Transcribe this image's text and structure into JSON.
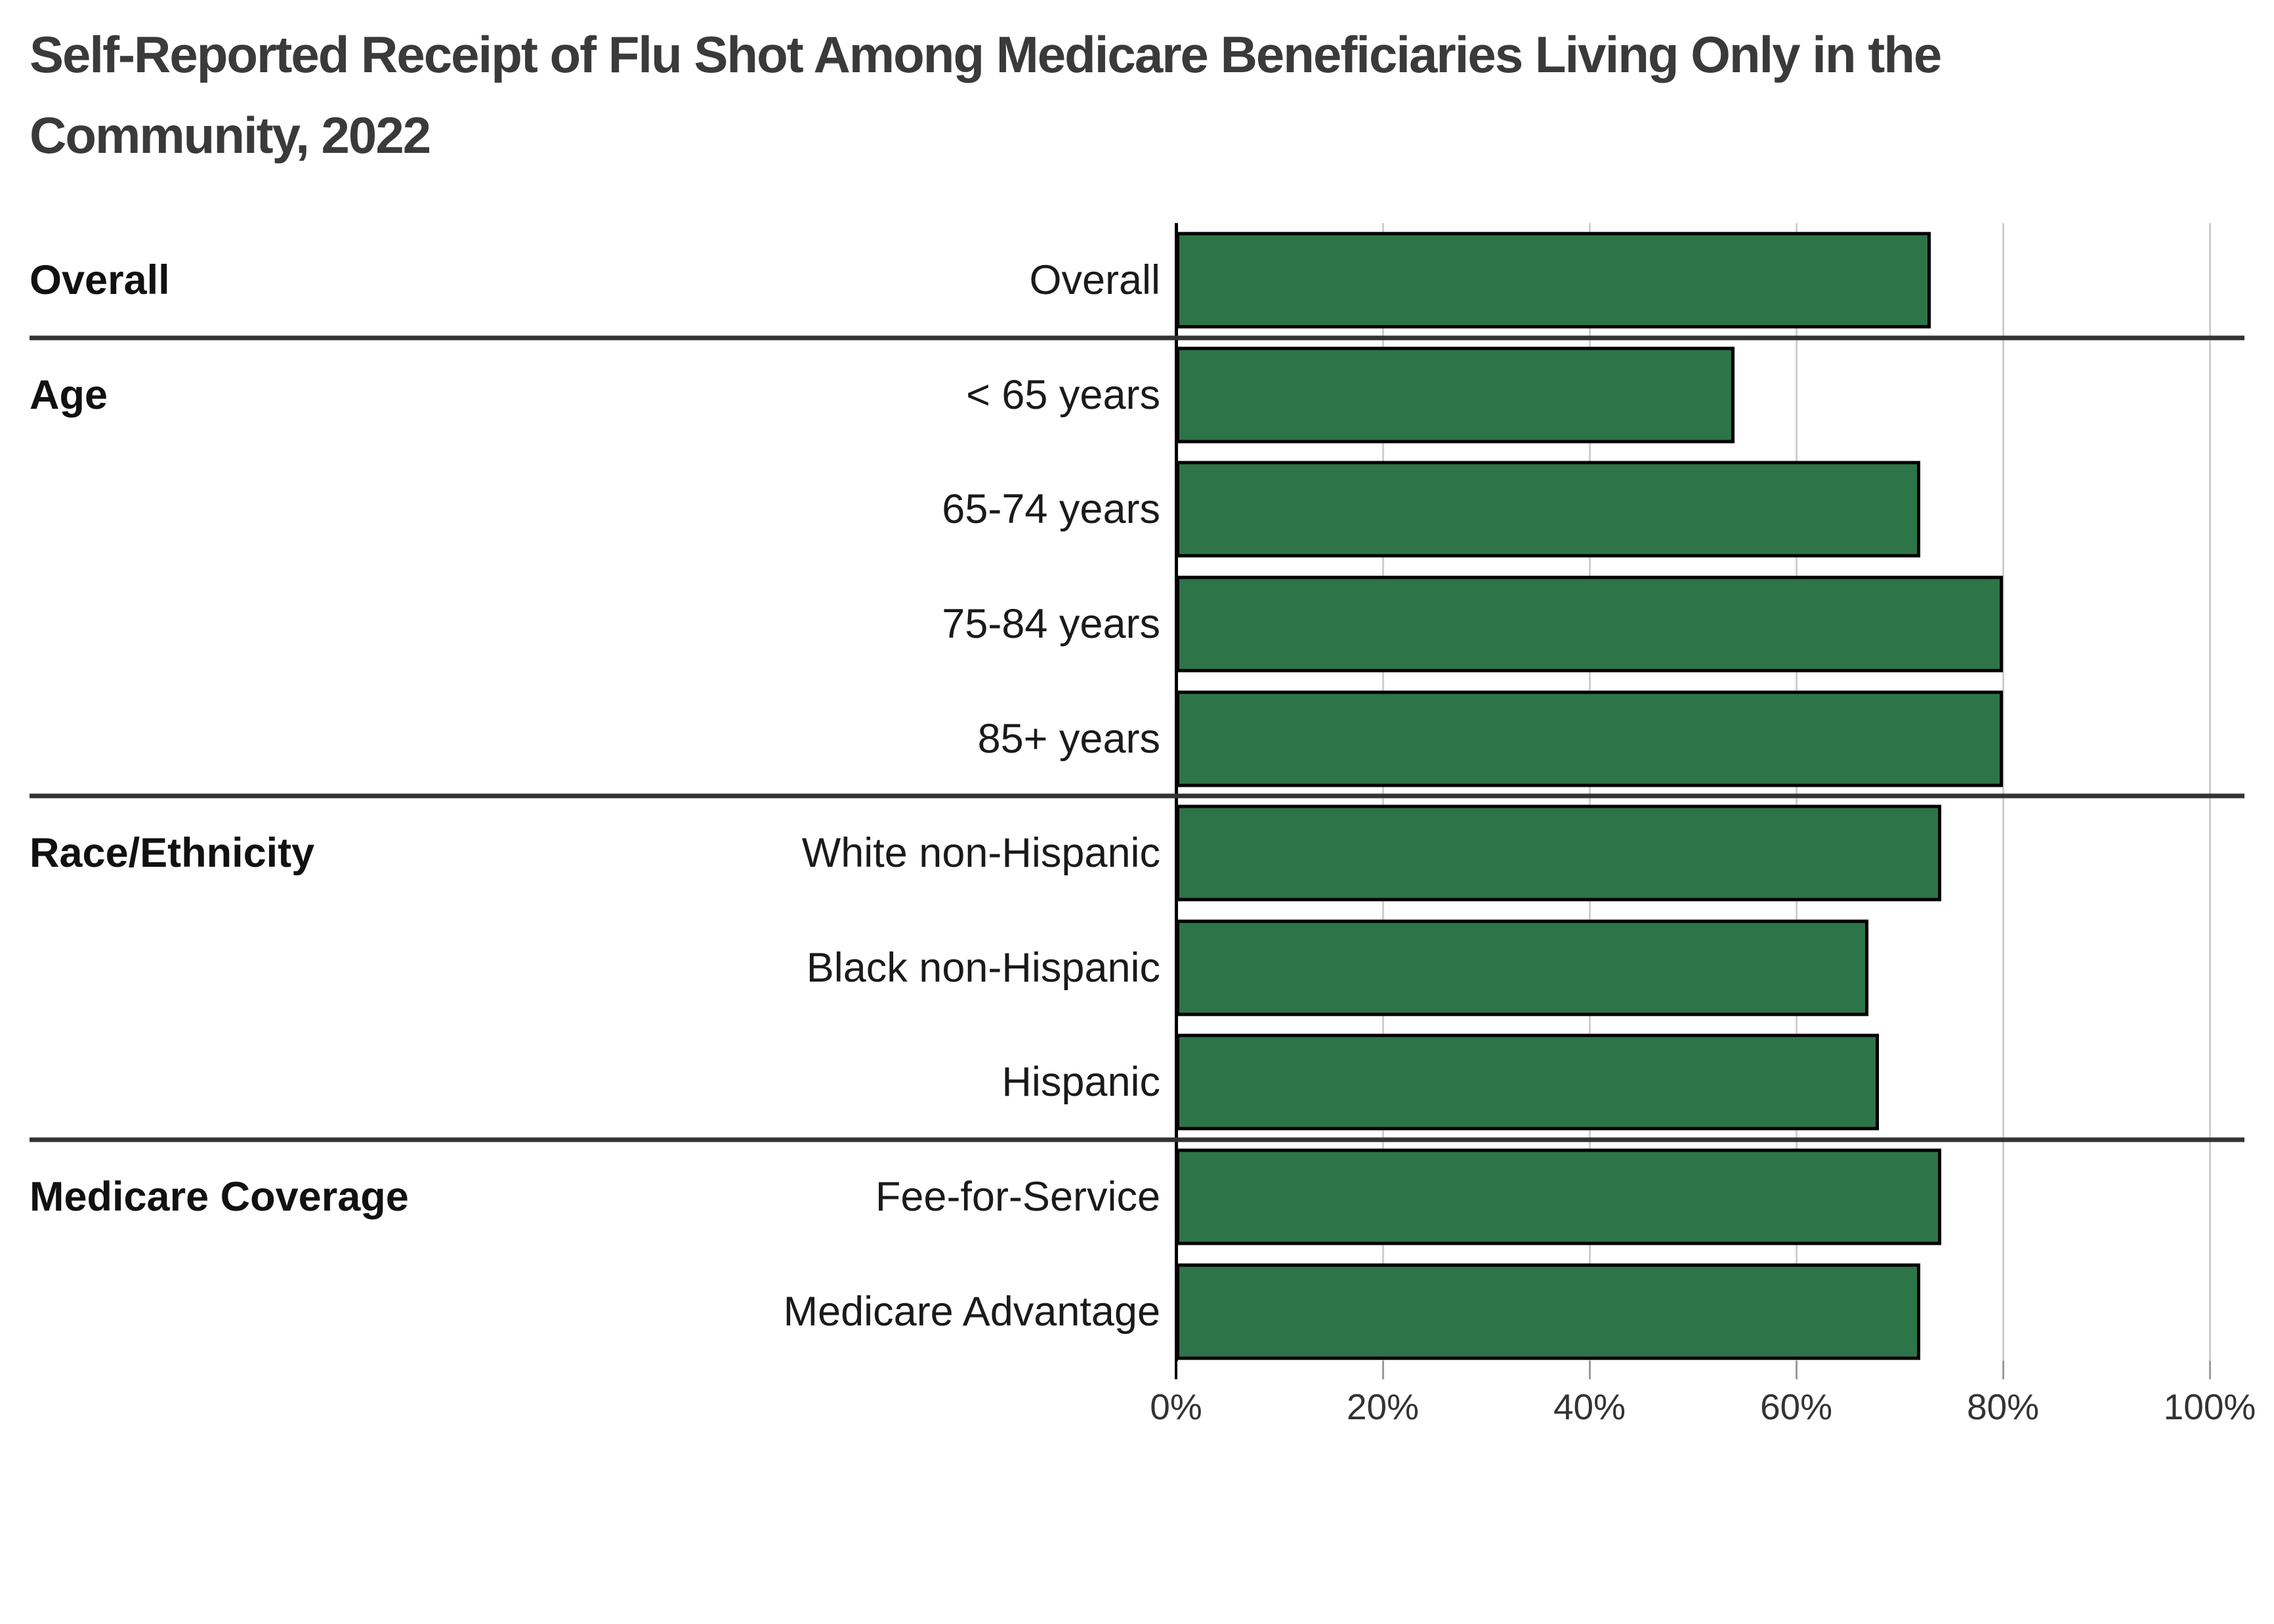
{
  "title": "Self-Reported Receipt of Flu Shot Among Medicare Beneficiaries Living Only in the Community, 2022",
  "chart_data": {
    "type": "bar",
    "orientation": "horizontal",
    "unit": "percent",
    "xlim": [
      0,
      100
    ],
    "x_ticks": [
      "0%",
      "20%",
      "40%",
      "60%",
      "80%",
      "100%"
    ],
    "x_tick_values": [
      0,
      20,
      40,
      60,
      80,
      100
    ],
    "grid": "vertical-gridlines-on",
    "legend": "none",
    "bar_color": "#2e7449",
    "bar_border_color": "#000000",
    "gridline_color": "#cfcfcf",
    "axis_color": "#000000",
    "separator_color": "#333333",
    "groups": [
      {
        "label": "Overall",
        "rows": [
          {
            "label": "Overall",
            "value": 73
          }
        ]
      },
      {
        "label": "Age",
        "rows": [
          {
            "label": "< 65 years",
            "value": 54
          },
          {
            "label": "65-74 years",
            "value": 72
          },
          {
            "label": "75-84 years",
            "value": 80
          },
          {
            "label": "85+ years",
            "value": 80
          }
        ]
      },
      {
        "label": "Race/Ethnicity",
        "rows": [
          {
            "label": "White non-Hispanic",
            "value": 74
          },
          {
            "label": "Black non-Hispanic",
            "value": 67
          },
          {
            "label": "Hispanic",
            "value": 68
          }
        ]
      },
      {
        "label": "Medicare Coverage",
        "rows": [
          {
            "label": "Fee-for-Service",
            "value": 74
          },
          {
            "label": "Medicare Advantage",
            "value": 72
          }
        ]
      }
    ]
  }
}
